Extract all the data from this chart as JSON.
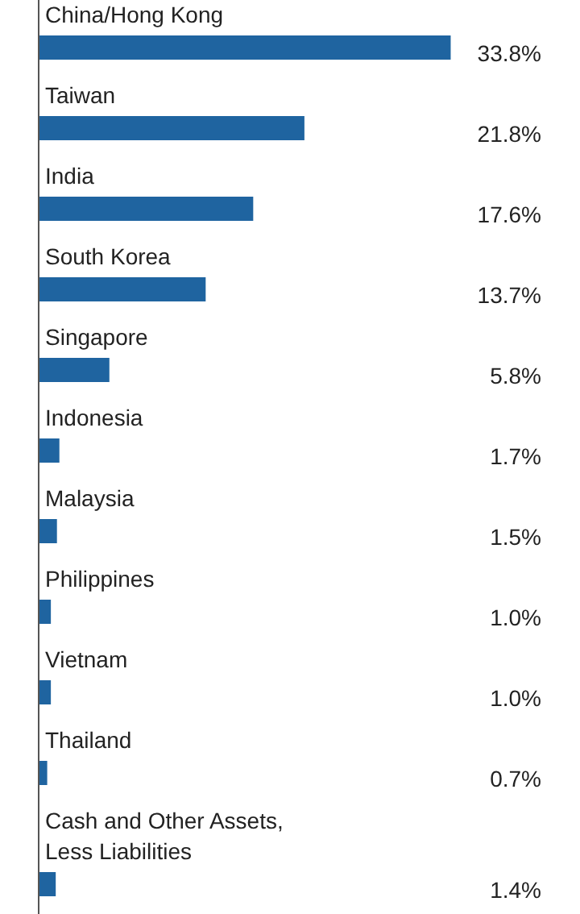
{
  "chart_data": {
    "type": "bar",
    "orientation": "horizontal",
    "categories": [
      "China/Hong Kong",
      "Taiwan",
      "India",
      "South Korea",
      "Singapore",
      "Indonesia",
      "Malaysia",
      "Philippines",
      "Vietnam",
      "Thailand",
      "Cash and Other Assets, Less Liabilities"
    ],
    "values": [
      33.8,
      21.8,
      17.6,
      13.7,
      5.8,
      1.7,
      1.5,
      1.0,
      1.0,
      0.7,
      1.4
    ],
    "value_labels": [
      "33.8%",
      "21.8%",
      "17.6%",
      "13.7%",
      "5.8%",
      "1.7%",
      "1.5%",
      "1.0%",
      "1.0%",
      "0.7%",
      "1.4%"
    ],
    "color": "#1f64a0"
  }
}
